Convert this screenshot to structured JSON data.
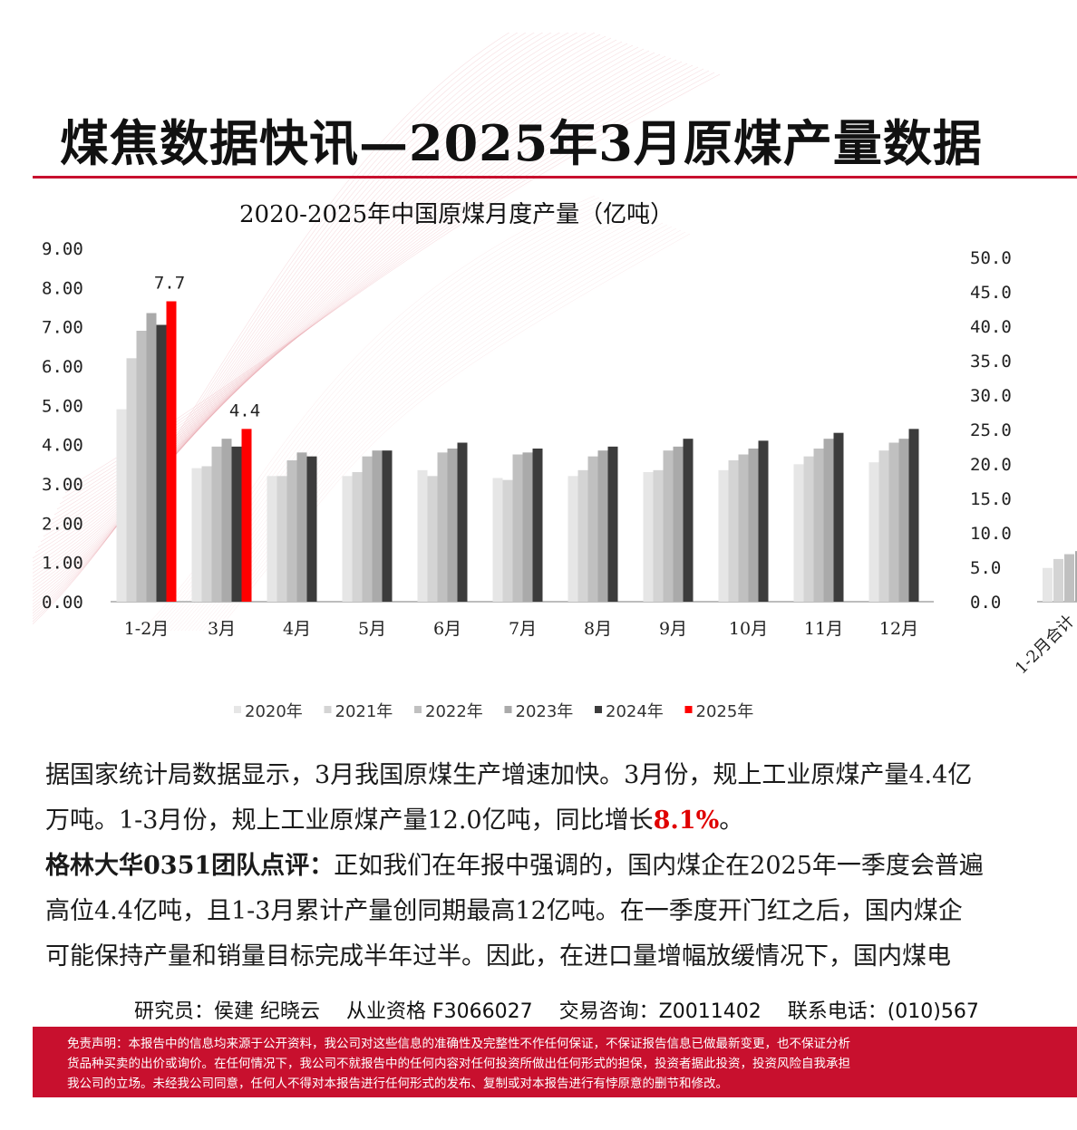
{
  "title": "煤焦数据快讯—2025年3月原煤产量数据",
  "chart_data": [
    {
      "type": "bar",
      "title": "2020-2025年中国原煤月度产量（亿吨）",
      "categories": [
        "1-2月",
        "3月",
        "4月",
        "5月",
        "6月",
        "7月",
        "8月",
        "9月",
        "10月",
        "11月",
        "12月"
      ],
      "ylim": [
        0,
        9
      ],
      "yticks": [
        "0.00",
        "1.00",
        "2.00",
        "3.00",
        "4.00",
        "5.00",
        "6.00",
        "7.00",
        "8.00",
        "9.00"
      ],
      "legend_position": "bottom",
      "grid": false,
      "series": [
        {
          "name": "2020年",
          "color": "#e6e6e6",
          "values": [
            4.9,
            3.4,
            3.2,
            3.2,
            3.35,
            3.15,
            3.2,
            3.3,
            3.35,
            3.5,
            3.55
          ]
        },
        {
          "name": "2021年",
          "color": "#d4d4d4",
          "values": [
            6.2,
            3.45,
            3.2,
            3.3,
            3.2,
            3.1,
            3.35,
            3.35,
            3.6,
            3.7,
            3.85
          ]
        },
        {
          "name": "2022年",
          "color": "#c0c0c0",
          "values": [
            6.9,
            3.95,
            3.6,
            3.7,
            3.8,
            3.75,
            3.7,
            3.85,
            3.75,
            3.9,
            4.05
          ]
        },
        {
          "name": "2023年",
          "color": "#aaaaaa",
          "values": [
            7.35,
            4.15,
            3.8,
            3.85,
            3.9,
            3.8,
            3.85,
            3.95,
            3.9,
            4.15,
            4.15
          ]
        },
        {
          "name": "2024年",
          "color": "#3c3c3c",
          "values": [
            7.05,
            3.95,
            3.7,
            3.85,
            4.05,
            3.9,
            3.95,
            4.15,
            4.1,
            4.3,
            4.4
          ]
        },
        {
          "name": "2025年",
          "color": "#ff0000",
          "values": [
            7.65,
            4.4,
            null,
            null,
            null,
            null,
            null,
            null,
            null,
            null,
            null
          ]
        }
      ],
      "data_labels": [
        {
          "category": "1-2月",
          "series": "2025年",
          "text": "7.7"
        },
        {
          "category": "3月",
          "series": "2025年",
          "text": "4.4"
        }
      ]
    },
    {
      "type": "bar",
      "partially_visible": true,
      "yticks": [
        "0.0",
        "5.0",
        "10.0",
        "15.0",
        "20.0",
        "25.0",
        "30.0",
        "35.0",
        "40.0",
        "45.0",
        "50.0"
      ],
      "ylim": [
        0,
        50
      ],
      "categories": [
        "1-2月合计"
      ],
      "category_label": "1-2月合计",
      "series": [
        {
          "color": "#e6e6e6",
          "values": [
            4.9
          ]
        },
        {
          "color": "#d4d4d4",
          "values": [
            6.2
          ]
        },
        {
          "color": "#c0c0c0",
          "values": [
            6.9
          ]
        },
        {
          "color": "#aaaaaa",
          "values": [
            7.35
          ]
        }
      ]
    }
  ],
  "paragraphs": {
    "p1_line1": "据国家统计局数据显示，3月我国原煤生产增速加快。3月份，规上工业原煤产量4.4亿",
    "p1_line2_a": "万吨。1-3月份，规上工业原煤产量12.0亿吨，同比增长",
    "p1_line2_red": "8.1%",
    "p1_line2_b": "。",
    "p2_label": "格林大华0351团队点评：",
    "p2_line1": "正如我们在年报中强调的，国内煤企在2025年一季度会普遍",
    "p2_line2": "高位4.4亿吨，且1-3月累计产量创同期最高12亿吨。在一季度开门红之后，国内煤企",
    "p2_line3": "可能保持产量和销量目标完成半年过半。因此，在进口量增幅放缓情况下，国内煤电"
  },
  "contact": {
    "researchers": "研究员：侯建 纪晓云",
    "qualification": "从业资格 F3066027",
    "consult": "交易咨询：Z0011402",
    "phone": "联系电话：(010)567"
  },
  "disclaimer": {
    "line1": "免责声明：本报告中的信息均来源于公开资料，我公司对这些信息的准确性及完整性不作任何保证，不保证报告信息已做最新变更，也不保证分析",
    "line2": "货品种买卖的出价或询价。在任何情况下，我公司不就报告中的任何内容对任何投资所做出任何形式的担保，投资者据此投资，投资风险自我承担",
    "line3": "我公司的立场。未经我公司同意，任何人不得对本报告进行任何形式的发布、复制或对本报告进行有悖原意的删节和修改。"
  },
  "colors": {
    "accent_red": "#c8102e",
    "highlight_red": "#ff0000"
  }
}
